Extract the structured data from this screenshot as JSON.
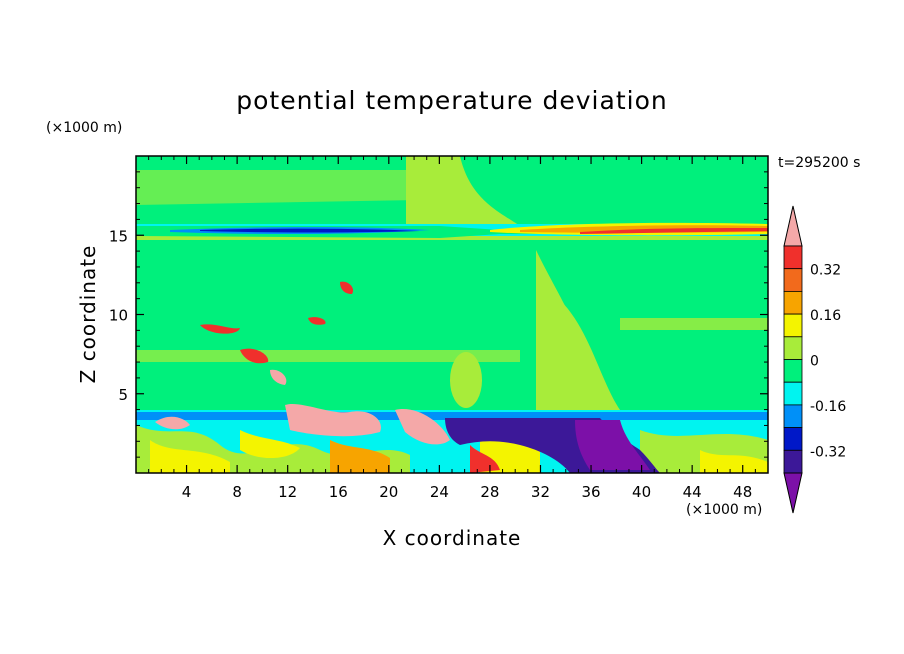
{
  "chart_data": {
    "type": "heatmap",
    "title": "potential temperature deviation",
    "xlabel": "X coordinate",
    "ylabel": "Z coordinate",
    "x_unit": "(×1000 m)",
    "y_unit": "(×1000 m)",
    "time_label": "t=295200 s",
    "xlim": [
      0,
      50
    ],
    "ylim": [
      0,
      20
    ],
    "x_ticks": [
      4,
      8,
      12,
      16,
      20,
      24,
      28,
      32,
      36,
      40,
      44,
      48
    ],
    "y_ticks": [
      5,
      10,
      15
    ],
    "colorbar": {
      "levels": [
        -0.4,
        -0.32,
        -0.24,
        -0.16,
        -0.08,
        0,
        0.08,
        0.16,
        0.24,
        0.32,
        0.4
      ],
      "tick_labels": [
        "0.32",
        "0.16",
        "0",
        "-0.16",
        "-0.32"
      ],
      "tick_values": [
        0.32,
        0.16,
        0,
        -0.16,
        -0.32
      ],
      "colors_top_to_bottom": [
        "#f4a8a8",
        "#f0302c",
        "#f26a1c",
        "#f7a400",
        "#f4f400",
        "#a8ec3a",
        "#00f07c",
        "#00f4f0",
        "#0090f8",
        "#0018c8",
        "#3c1898",
        "#7c10a8"
      ],
      "extend": "both"
    },
    "features": [
      {
        "label": "background",
        "value_range": [
          0,
          0.08
        ]
      },
      {
        "label": "upper layer band near z=15",
        "z": 15.2,
        "negative_x_range": [
          6,
          20
        ],
        "positive_x_range": [
          24,
          50
        ]
      },
      {
        "label": "mixed layer below z=4",
        "z_range": [
          0,
          4
        ]
      },
      {
        "label": "cold anomaly",
        "x_range": [
          24,
          41
        ],
        "z_range": [
          0.5,
          3.6
        ]
      },
      {
        "label": "warm anomalies",
        "x_range": [
          2,
          26
        ],
        "z_range": [
          2,
          10
        ]
      }
    ]
  }
}
